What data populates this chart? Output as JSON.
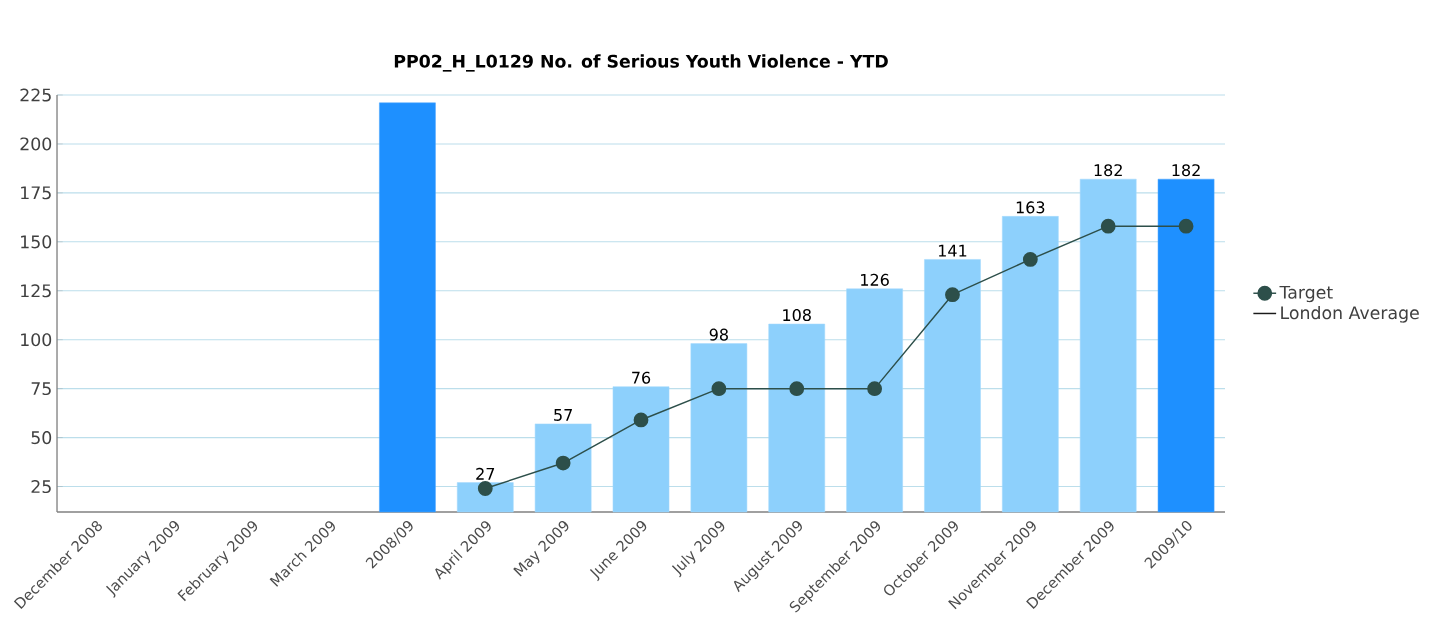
{
  "chart_data": {
    "type": "bar",
    "title": "PP02_H_L0129 No. of Serious Youth Violence - YTD",
    "categories": [
      "December 2008",
      "January 2009",
      "February 2009",
      "March 2009",
      "2008/09",
      "April 2009",
      "May 2009",
      "June 2009",
      "July 2009",
      "August 2009",
      "September 2009",
      "October 2009",
      "November 2009",
      "December 2009",
      "2009/10"
    ],
    "series": [
      {
        "colors": [
          "#8dd0fc",
          "#8dd0fc",
          "#8dd0fc",
          "#8dd0fc",
          "#1e90ff",
          "#8dd0fc",
          "#8dd0fc",
          "#8dd0fc",
          "#8dd0fc",
          "#8dd0fc",
          "#8dd0fc",
          "#8dd0fc",
          "#8dd0fc",
          "#8dd0fc",
          "#1e90ff"
        ],
        "values": [
          null,
          null,
          null,
          null,
          221,
          27,
          57,
          76,
          98,
          108,
          126,
          141,
          163,
          182,
          182
        ],
        "value_labels": [
          null,
          null,
          null,
          null,
          null,
          "27",
          "57",
          "76",
          "98",
          "108",
          "126",
          "141",
          "163",
          "182",
          "182"
        ]
      },
      {
        "type": "line",
        "name": "Target",
        "color": "#2d4f4a",
        "marker": "circle",
        "values": [
          null,
          null,
          null,
          null,
          null,
          24,
          37,
          59,
          75,
          75,
          75,
          123,
          141,
          158,
          158
        ]
      },
      {
        "type": "line",
        "name": "London Average",
        "color": "#1a1a1a",
        "marker": "none",
        "values": [
          null,
          null,
          null,
          null,
          null,
          null,
          null,
          null,
          null,
          null,
          null,
          null,
          null,
          null,
          null
        ]
      }
    ],
    "ylim": [
      12,
      225
    ],
    "yticks": [
      25,
      50,
      75,
      100,
      125,
      150,
      175,
      200,
      225
    ],
    "grid": "y",
    "legend": "right"
  }
}
